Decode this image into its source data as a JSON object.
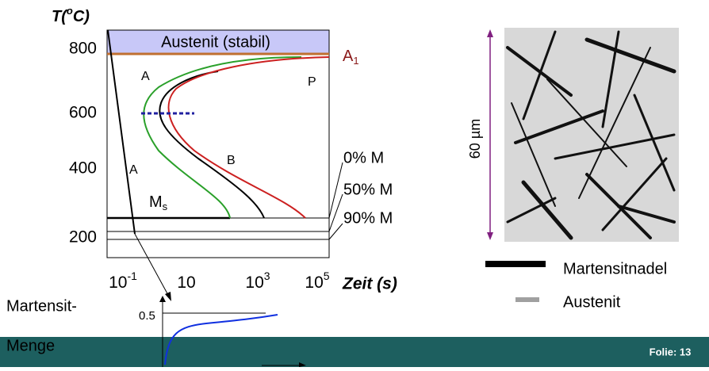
{
  "diagram": {
    "y_axis_title": "T(",
    "y_axis_title_sup": "o",
    "y_axis_title_end": "C)",
    "y_tick_labels": [
      "800",
      "600",
      "400",
      "200"
    ],
    "x_tick_labels": [
      {
        "base": "10",
        "exp": "-1"
      },
      {
        "base": "10",
        "exp": ""
      },
      {
        "base": "10",
        "exp": "3"
      },
      {
        "base": "10",
        "exp": "5"
      }
    ],
    "x_axis_title": "Zeit (s)",
    "band_label": "Austenit (stabil)",
    "a1_label": "A",
    "a1_sub": "1",
    "region_labels": [
      "A",
      "P",
      "B",
      "A"
    ],
    "ms_label": "M",
    "ms_sub": "s",
    "martensite_labels": [
      "0% M",
      "50% M",
      "90% M"
    ],
    "inset": {
      "title_line1": "Martensit-",
      "title_line2": "Menge",
      "tick": "0.5"
    },
    "scale_label": "60 µm",
    "legend": [
      "Martensitnadel",
      "Austenit"
    ],
    "footer": "Folie: 13"
  }
}
